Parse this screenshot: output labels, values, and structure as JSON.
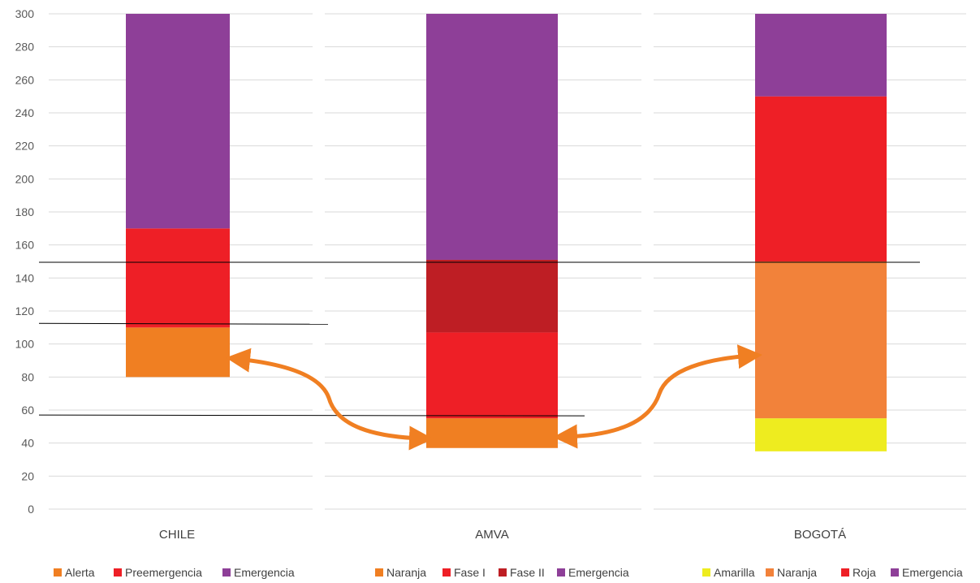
{
  "chart_data": {
    "type": "bar",
    "stacked": true,
    "ylim": [
      0,
      300
    ],
    "yticks": [
      0,
      20,
      40,
      60,
      80,
      100,
      120,
      140,
      160,
      180,
      200,
      220,
      240,
      260,
      280,
      300
    ],
    "grid": true,
    "groups": [
      {
        "category": "CHILE",
        "segments": [
          {
            "name": "Alerta",
            "from": 80,
            "to": 110,
            "color": "#f07f22"
          },
          {
            "name": "Preemergencia",
            "from": 110,
            "to": 170,
            "color": "#ee1f26"
          },
          {
            "name": "Emergencia",
            "from": 170,
            "to": 300,
            "color": "#8e3f98"
          }
        ]
      },
      {
        "category": "AMVA",
        "segments": [
          {
            "name": "Naranja",
            "from": 37,
            "to": 55,
            "color": "#f07f22"
          },
          {
            "name": "Fase I",
            "from": 55,
            "to": 107,
            "color": "#ee1f26"
          },
          {
            "name": "Fase II",
            "from": 107,
            "to": 151,
            "color": "#be1e24"
          },
          {
            "name": "Emergencia",
            "from": 151,
            "to": 300,
            "color": "#8e3f98"
          }
        ]
      },
      {
        "category": "BOGOTÁ",
        "segments": [
          {
            "name": "Amarilla",
            "from": 35,
            "to": 55,
            "color": "#eeec1f"
          },
          {
            "name": "Naranja",
            "from": 55,
            "to": 150,
            "color": "#f2823a"
          },
          {
            "name": "Roja",
            "from": 150,
            "to": 250,
            "color": "#ee1f26"
          },
          {
            "name": "Emergencia",
            "from": 250,
            "to": 300,
            "color": "#8e3f98"
          }
        ]
      }
    ],
    "reference_lines": [
      {
        "value": 149,
        "span": "CHILE-BOGOTÁ"
      },
      {
        "value": 112,
        "span": "CHILE"
      },
      {
        "value": 56,
        "span": "CHILE-AMVA"
      }
    ],
    "arrows": [
      {
        "from": "CHILE",
        "to": "AMVA",
        "color": "#f07f22"
      },
      {
        "from": "AMVA",
        "to": "BOGOTÁ",
        "color": "#f07f22"
      }
    ]
  }
}
